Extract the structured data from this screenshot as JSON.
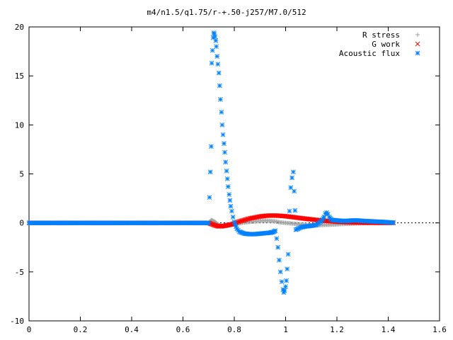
{
  "chart_data": {
    "type": "scatter",
    "title": "m4/n1.5/q1.75/r-+.50-j257/M7.0/512",
    "xlabel": "",
    "ylabel": "",
    "xlim": [
      0,
      1.6
    ],
    "ylim": [
      -10,
      20
    ],
    "xticks": [
      0,
      0.2,
      0.4,
      0.6,
      0.8,
      1,
      1.2,
      1.4,
      1.6
    ],
    "xtick_labels": [
      "0",
      "0.2",
      "0.4",
      "0.6",
      "0.8",
      "1",
      "1.2",
      "1.4",
      "1.6"
    ],
    "yticks": [
      -10,
      -5,
      0,
      5,
      10,
      15,
      20
    ],
    "ytick_labels": [
      "-10",
      "-5",
      "0",
      "5",
      "10",
      "15",
      "20"
    ],
    "grid": false,
    "legend_position": "top-right",
    "series": [
      {
        "name": "R stress",
        "marker": "plus",
        "color": "#a0a0a0",
        "x": [
          0.0,
          0.1,
          0.2,
          0.3,
          0.4,
          0.5,
          0.6,
          0.7,
          0.71,
          0.72,
          0.73,
          0.74,
          0.75,
          0.76,
          0.77,
          0.78,
          0.79,
          0.8,
          0.82,
          0.84,
          0.86,
          0.88,
          0.9,
          0.92,
          0.94,
          0.96,
          0.98,
          1.0,
          1.02,
          1.04,
          1.06,
          1.08,
          1.1,
          1.12,
          1.14,
          1.16,
          1.18,
          1.2,
          1.22,
          1.24,
          1.26,
          1.28,
          1.3,
          1.32,
          1.34,
          1.36,
          1.38,
          1.4,
          1.42
        ],
        "y": [
          0,
          0,
          0,
          0,
          0,
          0,
          0,
          0,
          0.3,
          0.2,
          0.0,
          -0.2,
          -0.3,
          -0.35,
          -0.3,
          -0.25,
          -0.2,
          -0.15,
          -0.05,
          0.05,
          0.1,
          0.15,
          0.2,
          0.22,
          0.2,
          0.15,
          0.05,
          0.0,
          -0.05,
          -0.1,
          -0.15,
          -0.2,
          -0.25,
          -0.25,
          -0.22,
          -0.2,
          -0.18,
          -0.15,
          -0.12,
          -0.1,
          -0.08,
          -0.05,
          -0.03,
          -0.02,
          0,
          0,
          0,
          0,
          0
        ]
      },
      {
        "name": "G work",
        "marker": "cross",
        "color": "#ff0000",
        "x": [
          0.0,
          0.1,
          0.2,
          0.3,
          0.4,
          0.5,
          0.6,
          0.7,
          0.71,
          0.72,
          0.73,
          0.74,
          0.75,
          0.76,
          0.77,
          0.78,
          0.79,
          0.8,
          0.82,
          0.84,
          0.86,
          0.88,
          0.9,
          0.92,
          0.94,
          0.96,
          0.98,
          1.0,
          1.02,
          1.04,
          1.06,
          1.08,
          1.1,
          1.12,
          1.14,
          1.16,
          1.18,
          1.2,
          1.22,
          1.24,
          1.26,
          1.28,
          1.3,
          1.32,
          1.34,
          1.36,
          1.38,
          1.4,
          1.42
        ],
        "y": [
          0,
          0,
          0,
          0,
          0,
          0,
          0,
          0,
          -0.1,
          -0.2,
          -0.3,
          -0.35,
          -0.35,
          -0.3,
          -0.25,
          -0.2,
          -0.15,
          -0.05,
          0.15,
          0.3,
          0.45,
          0.55,
          0.65,
          0.72,
          0.75,
          0.75,
          0.72,
          0.68,
          0.62,
          0.55,
          0.48,
          0.42,
          0.36,
          0.3,
          0.25,
          0.2,
          0.16,
          0.12,
          0.09,
          0.06,
          0.04,
          0.03,
          0.02,
          0.01,
          0.01,
          0,
          0,
          0,
          0
        ]
      },
      {
        "name": "Acoustic flux",
        "marker": "star",
        "color": "#0080ff",
        "x": [
          0.0,
          0.05,
          0.1,
          0.15,
          0.2,
          0.25,
          0.3,
          0.35,
          0.4,
          0.45,
          0.5,
          0.55,
          0.6,
          0.65,
          0.7,
          0.71,
          0.712,
          0.715,
          0.718,
          0.72,
          0.722,
          0.725,
          0.728,
          0.73,
          0.733,
          0.736,
          0.74,
          0.743,
          0.746,
          0.75,
          0.753,
          0.756,
          0.76,
          0.763,
          0.766,
          0.77,
          0.773,
          0.776,
          0.78,
          0.783,
          0.786,
          0.79,
          0.795,
          0.8,
          0.81,
          0.82,
          0.84,
          0.86,
          0.88,
          0.9,
          0.92,
          0.94,
          0.95,
          0.96,
          0.965,
          0.97,
          0.975,
          0.98,
          0.985,
          0.99,
          0.993,
          0.996,
          1.0,
          1.003,
          1.006,
          1.01,
          1.015,
          1.02,
          1.025,
          1.03,
          1.04,
          1.06,
          1.08,
          1.1,
          1.12,
          1.14,
          1.15,
          1.155,
          1.16,
          1.165,
          1.17,
          1.18,
          1.2,
          1.22,
          1.24,
          1.26,
          1.28,
          1.3,
          1.32,
          1.34,
          1.36,
          1.38,
          1.4,
          1.42
        ],
        "y": [
          0,
          0,
          0,
          0,
          0,
          0,
          0,
          0,
          0,
          0,
          0,
          0,
          0,
          0,
          0,
          7.8,
          16.3,
          17.6,
          18.9,
          19.4,
          19.3,
          19.0,
          18.6,
          18.0,
          17.0,
          16.2,
          15.3,
          14.0,
          12.6,
          11.3,
          10.0,
          9.0,
          8.1,
          7.2,
          6.2,
          5.3,
          4.5,
          3.7,
          2.9,
          2.3,
          1.7,
          1.2,
          0.6,
          0.1,
          -0.6,
          -0.9,
          -1.1,
          -1.15,
          -1.15,
          -1.1,
          -1.05,
          -1.0,
          -0.95,
          -0.8,
          -1.6,
          -2.5,
          -3.8,
          -5.0,
          -6.0,
          -6.8,
          -7.1,
          -6.9,
          -6.5,
          -5.9,
          -4.7,
          -3.2,
          1.2,
          3.6,
          4.6,
          5.2,
          -0.7,
          -0.45,
          -0.35,
          -0.3,
          -0.2,
          0.2,
          0.6,
          0.95,
          1.05,
          0.9,
          0.6,
          0.3,
          0.25,
          0.2,
          0.2,
          0.25,
          0.25,
          0.2,
          0.18,
          0.15,
          0.12,
          0.1,
          0.06,
          0.03
        ]
      }
    ]
  }
}
